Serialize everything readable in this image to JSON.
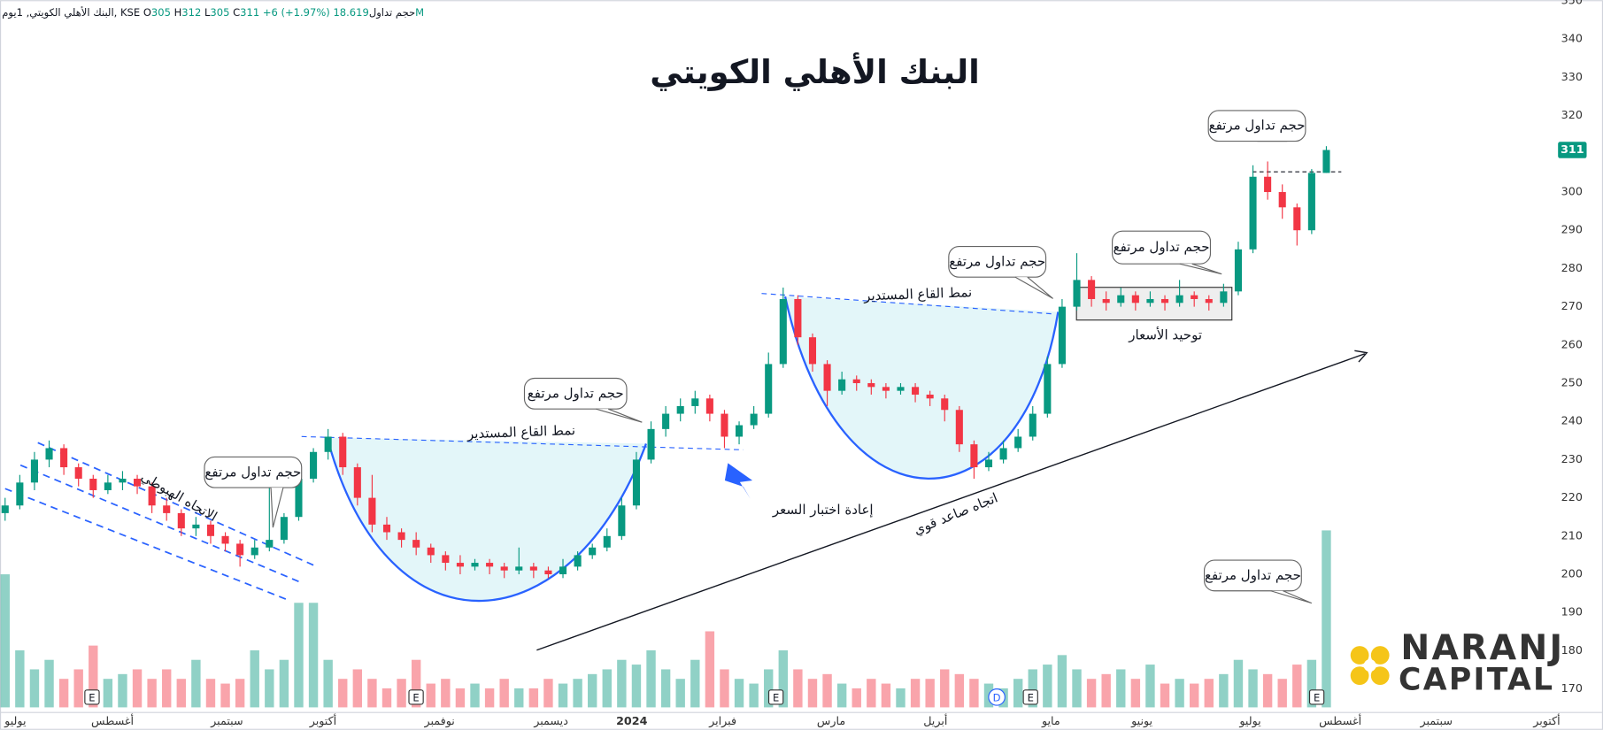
{
  "chart_data": {
    "type": "candlestick",
    "title": "البنك الأهلي الكويتي",
    "header": {
      "symbol": "البنك الأهلي الكويتي, 1يوم, KSE",
      "ohlc_letters": [
        "O",
        "H",
        "L",
        "C"
      ],
      "change": "+6 (+1.97%)",
      "volume_title": "حجم تداول",
      "volume_value_label": "18.619M"
    },
    "x_labels": [
      "يوليو",
      "أغسطس",
      "سبتمبر",
      "أكتوبر",
      "نوفمبر",
      "ديسمبر",
      "2024",
      "فبراير",
      "مارس",
      "أبريل",
      "مايو",
      "يونيو",
      "يوليو",
      "أغسطس",
      "سبتمبر",
      "أكتوبر"
    ],
    "ylim": [
      159.3,
      350.2
    ],
    "yticks": [
      170,
      180,
      190,
      200,
      210,
      220,
      230,
      240,
      250,
      260,
      270,
      280,
      290,
      300,
      310,
      320,
      330,
      340,
      350
    ],
    "up_color": "#089981",
    "down_color": "#f23645",
    "ohlc": [
      [
        216,
        220,
        214,
        218
      ],
      [
        218,
        226,
        217,
        224
      ],
      [
        224,
        232,
        222,
        230
      ],
      [
        230,
        235,
        228,
        233
      ],
      [
        233,
        234,
        226,
        228
      ],
      [
        228,
        229,
        223,
        225
      ],
      [
        225,
        226,
        220,
        222
      ],
      [
        222,
        226,
        221,
        224
      ],
      [
        224,
        227,
        222,
        225
      ],
      [
        225,
        226,
        221,
        223
      ],
      [
        223,
        224,
        216,
        218
      ],
      [
        218,
        220,
        214,
        216
      ],
      [
        216,
        217,
        210,
        212
      ],
      [
        212,
        215,
        210,
        213
      ],
      [
        213,
        214,
        208,
        210
      ],
      [
        210,
        211,
        206,
        208
      ],
      [
        208,
        209,
        202,
        205
      ],
      [
        205,
        209,
        204,
        207
      ],
      [
        207,
        225,
        206,
        209
      ],
      [
        209,
        216,
        208,
        215
      ],
      [
        215,
        226,
        214,
        225
      ],
      [
        225,
        233,
        224,
        232
      ],
      [
        232,
        238,
        230,
        236
      ],
      [
        236,
        237,
        226,
        228
      ],
      [
        228,
        229,
        218,
        220
      ],
      [
        220,
        226,
        211,
        213
      ],
      [
        213,
        215,
        209,
        211
      ],
      [
        211,
        212,
        207,
        209
      ],
      [
        209,
        211,
        205,
        207
      ],
      [
        207,
        208,
        203,
        205
      ],
      [
        205,
        206,
        201,
        203
      ],
      [
        203,
        205,
        200,
        202
      ],
      [
        202,
        204,
        201,
        203
      ],
      [
        203,
        204,
        200,
        202
      ],
      [
        202,
        203,
        199,
        201
      ],
      [
        201,
        207,
        200,
        202
      ],
      [
        202,
        203,
        199,
        201
      ],
      [
        201,
        202,
        199,
        200
      ],
      [
        200,
        204,
        199,
        202
      ],
      [
        202,
        206,
        201,
        205
      ],
      [
        205,
        208,
        204,
        207
      ],
      [
        207,
        212,
        206,
        210
      ],
      [
        210,
        220,
        209,
        218
      ],
      [
        218,
        232,
        217,
        230
      ],
      [
        230,
        240,
        229,
        238
      ],
      [
        238,
        244,
        236,
        242
      ],
      [
        242,
        246,
        240,
        244
      ],
      [
        244,
        248,
        242,
        246
      ],
      [
        246,
        247,
        240,
        242
      ],
      [
        242,
        243,
        233,
        236
      ],
      [
        236,
        240,
        234,
        239
      ],
      [
        239,
        244,
        238,
        242
      ],
      [
        242,
        258,
        241,
        255
      ],
      [
        255,
        275,
        254,
        272
      ],
      [
        272,
        273,
        260,
        262
      ],
      [
        262,
        263,
        253,
        255
      ],
      [
        255,
        256,
        244,
        248
      ],
      [
        248,
        253,
        247,
        251
      ],
      [
        251,
        252,
        248,
        250
      ],
      [
        250,
        251,
        247,
        249
      ],
      [
        249,
        250,
        246,
        248
      ],
      [
        248,
        250,
        247,
        249
      ],
      [
        249,
        250,
        245,
        247
      ],
      [
        247,
        248,
        244,
        246
      ],
      [
        246,
        247,
        240,
        243
      ],
      [
        243,
        244,
        232,
        234
      ],
      [
        234,
        235,
        225,
        228
      ],
      [
        228,
        232,
        227,
        230
      ],
      [
        230,
        235,
        229,
        233
      ],
      [
        233,
        238,
        232,
        236
      ],
      [
        236,
        244,
        235,
        242
      ],
      [
        242,
        257,
        241,
        255
      ],
      [
        255,
        272,
        254,
        270
      ],
      [
        270,
        284,
        269,
        277
      ],
      [
        277,
        278,
        270,
        272
      ],
      [
        272,
        274,
        269,
        271
      ],
      [
        271,
        275,
        270,
        273
      ],
      [
        273,
        274,
        269,
        271
      ],
      [
        271,
        274,
        270,
        272
      ],
      [
        272,
        273,
        269,
        271
      ],
      [
        271,
        277,
        270,
        273
      ],
      [
        273,
        274,
        270,
        272
      ],
      [
        272,
        273,
        269,
        271
      ],
      [
        271,
        276,
        270,
        274
      ],
      [
        274,
        287,
        273,
        285
      ],
      [
        285,
        307,
        284,
        304
      ],
      [
        304,
        308,
        298,
        300
      ],
      [
        300,
        302,
        293,
        296
      ],
      [
        296,
        297,
        286,
        290
      ],
      [
        290,
        306,
        289,
        305
      ],
      [
        305,
        312,
        305,
        311
      ]
    ],
    "volume": [
      14,
      6,
      4,
      5,
      3,
      4,
      6.5,
      3,
      3.5,
      4,
      3,
      4,
      3,
      5,
      3,
      2.5,
      3,
      6,
      4,
      5,
      11,
      11,
      5,
      3,
      4,
      3,
      2,
      3,
      5,
      2.5,
      3,
      2,
      2.5,
      2,
      3,
      2,
      2,
      3,
      2.5,
      3,
      3.5,
      4,
      5,
      4.5,
      6,
      4,
      3,
      5,
      8,
      4,
      3,
      2.5,
      4,
      6,
      4,
      3,
      3.5,
      2.5,
      2,
      3,
      2.5,
      2,
      3,
      3,
      4,
      3.5,
      3,
      2.5,
      2,
      3,
      4,
      4.5,
      5.5,
      4,
      3,
      3.5,
      4,
      3,
      4.5,
      2.5,
      3,
      2.5,
      3,
      3.5,
      5,
      4,
      3.5,
      3,
      4.5,
      5,
      18.619
    ],
    "annotations": [
      "حجم تداول مرتفع",
      "حجم تداول مرتفع",
      "حجم تداول مرتفع",
      "حجم تداول مرتفع",
      "حجم تداول مرتفع",
      "حجم تداول مرتفع",
      "نمط القاع المستدير",
      "نمط القاع المستدير",
      "الاتجاه الهبوطي",
      "إعادة اختبار السعر",
      "اتجاه صاعد قوي",
      "توحيد الأسعار"
    ],
    "events": [
      "E",
      "E",
      "E",
      "D",
      "E",
      "E"
    ],
    "logo": [
      "NARANJ",
      "CAPITAL"
    ]
  }
}
